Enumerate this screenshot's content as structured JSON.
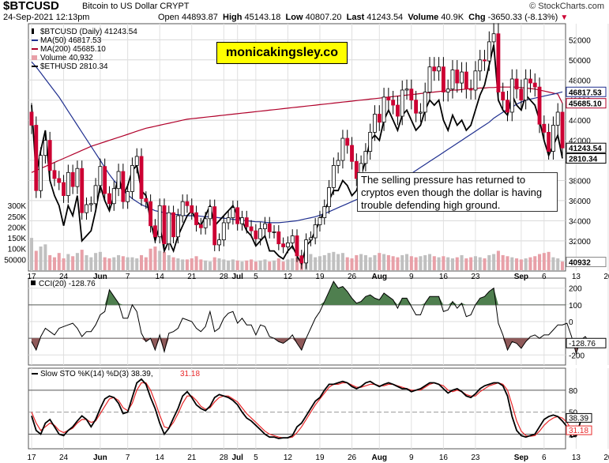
{
  "header": {
    "symbol": "$BTCUSD",
    "name": "Bitcoin to US Dollar  CRYPT",
    "date": "24-Sep-2021 12:13pm",
    "open_label": "Open",
    "open": "44893.87",
    "high_label": "High",
    "high": "45143.18",
    "low_label": "Low",
    "low": "40807.20",
    "last_label": "Last",
    "last": "41243.54",
    "volume_label": "Volume",
    "volume": "40.9K",
    "chg_label": "Chg",
    "chg": "-3650.33 (-8.13%)",
    "credit": "© StockCharts.com"
  },
  "watermark": "monicakingsley.co",
  "annotation": "The selling pressure has returned to cryptos even though the dollar is having trouble defending high ground.",
  "colors": {
    "up": "#ffffff",
    "down": "#cc0033",
    "ma50": "#1f2f8f",
    "ma200": "#b0002a",
    "eth": "#000000",
    "volume": "#e8a0a8",
    "volume_gray": "#c0c0c0",
    "cci_pos": "#4f7f4f",
    "cci_neg": "#8f5a5a",
    "sto_k": "#000000",
    "sto_d": "#e8282a"
  },
  "chart_data": [
    {
      "type": "candlestick",
      "title": "$BTCUSD (Daily) 41243.54",
      "legend": [
        {
          "name": "$BTCUSD (Daily) 41243.54",
          "color": "#000000",
          "kind": "candles"
        },
        {
          "name": "MA(50) 46817.53",
          "color": "#1f2f8f",
          "kind": "line"
        },
        {
          "name": "MA(200) 45685.10",
          "color": "#b0002a",
          "kind": "line"
        },
        {
          "name": "Volume 40,932",
          "color": "#e8a0a8",
          "kind": "bar"
        },
        {
          "name": "$ETHUSD 2810.34",
          "color": "#000000",
          "kind": "line"
        }
      ],
      "ylim": [
        29000,
        53600
      ],
      "y_ticks": [
        30000,
        32000,
        34000,
        36000,
        38000,
        40000,
        42000,
        44000,
        46000,
        48000,
        50000,
        52000
      ],
      "x_ticks": [
        "17",
        "24",
        "Jun",
        "7",
        "14",
        "21",
        "28",
        "Jul",
        "5",
        "12",
        "19",
        "26",
        "Aug",
        "9",
        "16",
        "23",
        "Sep",
        "6",
        "13",
        "20"
      ],
      "x_tick_days": [
        0,
        7,
        15,
        21,
        28,
        35,
        42,
        45,
        49,
        56,
        63,
        70,
        76,
        83,
        90,
        97,
        107,
        112,
        119,
        126
      ],
      "volume_ticks": [
        "300K",
        "250K",
        "200K",
        "150K",
        "100K",
        "50000"
      ],
      "volume_tick_values": [
        300,
        250,
        200,
        150,
        100,
        50
      ],
      "volume_max": 330,
      "tags": [
        {
          "label": "46817.53",
          "value": 46817.53,
          "style": "blue"
        },
        {
          "label": "45685.10",
          "value": 45685.1,
          "style": "red"
        },
        {
          "label": "41243.54",
          "value": 41243.54,
          "style": "dark"
        },
        {
          "label": "2810.34",
          "value": 40200,
          "style": "dark"
        },
        {
          "label": "40932",
          "value": 29900,
          "style": "light"
        }
      ],
      "close": [
        43500,
        37000,
        40500,
        42000,
        39000,
        38200,
        37800,
        36500,
        38800,
        37400,
        39200,
        34800,
        35600,
        35700,
        37500,
        39400,
        36700,
        35700,
        37200,
        38900,
        35900,
        36900,
        39500,
        40400,
        36200,
        35900,
        33500,
        32400,
        35500,
        31700,
        34800,
        32400,
        34500,
        35900,
        35500,
        34800,
        33600,
        33300,
        34200,
        35400,
        31600,
        32100,
        33800,
        34300,
        35300,
        33700,
        34300,
        33400,
        33000,
        32200,
        33200,
        33700,
        32900,
        32900,
        31700,
        31400,
        31800,
        32500,
        30500,
        29800,
        32100,
        32300,
        33600,
        34300,
        35400,
        37300,
        39500,
        40000,
        42200,
        41500,
        39900,
        38200,
        39700,
        40900,
        42800,
        44600,
        43800,
        46300,
        46000,
        45500,
        44400,
        47000,
        47100,
        46000,
        44700,
        44800,
        46800,
        49300,
        48900,
        49300,
        46800,
        47100,
        49000,
        47700,
        48800,
        47100,
        47000,
        48900,
        50000,
        49900,
        51800,
        52600,
        46800,
        46000,
        44800,
        48100,
        47100,
        46000,
        48100,
        47700,
        47300,
        43600,
        42800,
        40900,
        43500,
        44800,
        41243
      ],
      "ma50": [
        49800,
        49300,
        48700,
        48100,
        47500,
        46900,
        46300,
        45600,
        44900,
        44200,
        43500,
        42800,
        42100,
        41400,
        40700,
        40000,
        39300,
        38600,
        38000,
        37500,
        37000,
        36600,
        36200,
        35900,
        35600,
        35400,
        35200,
        35000,
        34900,
        34800,
        34700,
        34650,
        34600,
        34550,
        34500,
        34500,
        34500,
        34450,
        34400,
        34400,
        34350,
        34300,
        34250,
        34200,
        34150,
        34100,
        34050,
        34000,
        33950,
        33900,
        33900,
        33850,
        33800,
        33800,
        33800,
        33850,
        33900,
        33950,
        34000,
        34100,
        34200,
        34300,
        34400,
        34550,
        34700,
        34900,
        35100,
        35300,
        35500,
        35700,
        35900,
        36100,
        36300,
        36500,
        36700,
        36900,
        37100,
        37300,
        37500,
        37700,
        37900,
        38100,
        38400,
        38700,
        39000,
        39300,
        39600,
        39900,
        40200,
        40500,
        40800,
        41100,
        41400,
        41700,
        42000,
        42300,
        42600,
        42900,
        43200,
        43500,
        43800,
        44200,
        44500,
        44800,
        45100,
        45300,
        45600,
        45800,
        46000,
        46100,
        46200,
        46300,
        46400,
        46500,
        46600,
        46700,
        46818
      ],
      "ma200": [
        38800,
        39000,
        39200,
        39400,
        39600,
        39800,
        40000,
        40200,
        40400,
        40600,
        40800,
        41000,
        41200,
        41400,
        41550,
        41700,
        41850,
        42000,
        42150,
        42300,
        42450,
        42600,
        42750,
        42900,
        43050,
        43200,
        43300,
        43400,
        43500,
        43600,
        43700,
        43800,
        43900,
        44000,
        44100,
        44150,
        44200,
        44250,
        44300,
        44350,
        44400,
        44450,
        44500,
        44550,
        44600,
        44650,
        44700,
        44750,
        44800,
        44850,
        44900,
        44950,
        45000,
        45050,
        45100,
        45150,
        45200,
        45250,
        45300,
        45350,
        45400,
        45450,
        45500,
        45550,
        45600,
        45650,
        45700,
        45750,
        45800,
        45850,
        45900,
        45950,
        46000,
        46050,
        46100,
        46150,
        46200,
        46250,
        46300,
        46350,
        46400,
        46450,
        46500,
        46550,
        46600,
        46650,
        46700,
        46750,
        46800,
        46850,
        46900,
        46950,
        47000,
        47000,
        47050,
        47100,
        47150,
        47150,
        47200,
        47200,
        47250,
        47250,
        47300,
        47300,
        47300,
        47300,
        47300,
        47250,
        47200,
        47150,
        47100,
        47000,
        46900,
        46800,
        46700,
        46600,
        45685
      ],
      "ethusd_scaled": [
        45500,
        38500,
        41000,
        43000,
        38000,
        36500,
        35500,
        33500,
        35500,
        34500,
        36500,
        32000,
        32500,
        33000,
        35000,
        37500,
        36000,
        35000,
        36500,
        38500,
        36500,
        37500,
        39000,
        39500,
        37000,
        36500,
        34000,
        32000,
        33500,
        31000,
        32000,
        31000,
        32500,
        33500,
        34500,
        35000,
        34000,
        33500,
        34500,
        35500,
        33500,
        34000,
        34500,
        35000,
        35500,
        34500,
        34000,
        33000,
        32500,
        31500,
        32000,
        32500,
        31000,
        31000,
        30500,
        30200,
        31000,
        31500,
        30500,
        29700,
        31500,
        32000,
        33000,
        34000,
        35000,
        36000,
        37000,
        37000,
        38000,
        37500,
        36500,
        37000,
        38500,
        40000,
        42000,
        42500,
        42000,
        44000,
        45000,
        44000,
        43000,
        44500,
        45000,
        44000,
        43000,
        43500,
        45000,
        46000,
        45500,
        46000,
        44000,
        43000,
        44500,
        43500,
        44000,
        43000,
        43500,
        45000,
        46500,
        47500,
        49500,
        51500,
        46000,
        45000,
        44500,
        46500,
        45500,
        45000,
        46500,
        46000,
        45500,
        44000,
        42000,
        40500,
        41500,
        42500,
        40200
      ],
      "volume": [
        150,
        90,
        110,
        120,
        70,
        60,
        80,
        55,
        75,
        65,
        80,
        95,
        70,
        60,
        80,
        85,
        60,
        55,
        60,
        70,
        65,
        60,
        60,
        55,
        70,
        60,
        100,
        110,
        90,
        85,
        70,
        60,
        55,
        50,
        50,
        55,
        65,
        50,
        45,
        40,
        60,
        55,
        50,
        45,
        50,
        45,
        40,
        45,
        50,
        40,
        45,
        50,
        40,
        45,
        55,
        40,
        50,
        55,
        60,
        70,
        80,
        75,
        60,
        65,
        70,
        80,
        85,
        75,
        80,
        60,
        55,
        70,
        75,
        70,
        60,
        70,
        80,
        75,
        70,
        65,
        60,
        70,
        75,
        65,
        60,
        65,
        70,
        75,
        65,
        60,
        65,
        60,
        55,
        60,
        70,
        55,
        60,
        65,
        60,
        55,
        70,
        75,
        90,
        70,
        65,
        60,
        55,
        50,
        55,
        60,
        65,
        75,
        80,
        85,
        60,
        55,
        40
      ]
    },
    {
      "type": "area",
      "title": "CCI(20) -128.76",
      "ylim": [
        -260,
        260
      ],
      "y_ticks": [
        200,
        100,
        0,
        -100,
        -200
      ],
      "y_tick_labels": [
        "200",
        "100",
        "0",
        "",
        "-200"
      ],
      "tag": {
        "label": "-128.76",
        "value": -128.76
      },
      "values": [
        -120,
        -170,
        -90,
        -40,
        -60,
        -80,
        -40,
        -30,
        -20,
        -10,
        -40,
        -90,
        -60,
        -60,
        -20,
        40,
        60,
        190,
        150,
        110,
        20,
        20,
        100,
        60,
        -70,
        -120,
        -100,
        -170,
        -80,
        -180,
        -70,
        -60,
        -40,
        20,
        10,
        0,
        -40,
        -60,
        -30,
        60,
        -60,
        -40,
        20,
        50,
        60,
        -10,
        20,
        -20,
        -20,
        -80,
        -20,
        -30,
        -90,
        -100,
        -120,
        -130,
        -110,
        -80,
        -130,
        -170,
        -100,
        -40,
        20,
        60,
        120,
        180,
        240,
        200,
        210,
        180,
        140,
        110,
        120,
        150,
        160,
        140,
        130,
        170,
        150,
        130,
        80,
        140,
        140,
        90,
        40,
        40,
        110,
        150,
        150,
        150,
        60,
        70,
        120,
        80,
        110,
        30,
        40,
        100,
        140,
        150,
        180,
        200,
        -10,
        -80,
        -170,
        -120,
        -130,
        -160,
        -120,
        -90,
        -80,
        -100,
        -80,
        -80,
        -50,
        -20,
        -20,
        -10,
        -90,
        -190,
        -110,
        -90,
        -129
      ]
    },
    {
      "type": "line",
      "title": "Slow STO %K(14) %D(3) 38.39, 31.18",
      "title_main": "Slow STO %K(14) %D(3) 38.39,",
      "title_d": "31.18",
      "ylim": [
        0,
        110
      ],
      "y_ticks": [
        80,
        50,
        20
      ],
      "tags": [
        {
          "label": "38.39",
          "value": 38.39
        },
        {
          "label": "31.18",
          "value": 31.18
        }
      ],
      "k_values": [
        45,
        25,
        20,
        35,
        40,
        30,
        20,
        18,
        25,
        30,
        38,
        45,
        40,
        30,
        40,
        55,
        68,
        72,
        70,
        62,
        48,
        50,
        70,
        90,
        95,
        88,
        70,
        55,
        35,
        20,
        28,
        42,
        55,
        72,
        78,
        70,
        60,
        55,
        52,
        58,
        70,
        74,
        72,
        70,
        66,
        60,
        50,
        42,
        38,
        32,
        26,
        20,
        16,
        16,
        14,
        15,
        15,
        18,
        30,
        35,
        45,
        55,
        65,
        70,
        80,
        88,
        88,
        90,
        92,
        90,
        85,
        82,
        85,
        90,
        92,
        88,
        85,
        88,
        90,
        88,
        85,
        82,
        82,
        78,
        80,
        82,
        86,
        90,
        90,
        88,
        82,
        76,
        80,
        82,
        78,
        72,
        70,
        75,
        82,
        86,
        88,
        90,
        90,
        86,
        72,
        44,
        25,
        18,
        16,
        18,
        20,
        30,
        40,
        44,
        46,
        44,
        38,
        30,
        16,
        18,
        38
      ],
      "d_values": [
        50,
        35,
        25,
        30,
        35,
        32,
        25,
        22,
        25,
        28,
        35,
        40,
        40,
        36,
        38,
        48,
        58,
        68,
        70,
        66,
        56,
        52,
        62,
        80,
        90,
        90,
        80,
        64,
        46,
        30,
        28,
        36,
        48,
        62,
        72,
        72,
        66,
        58,
        54,
        56,
        64,
        70,
        72,
        72,
        68,
        64,
        56,
        48,
        42,
        36,
        30,
        24,
        20,
        18,
        16,
        15,
        15,
        16,
        22,
        30,
        40,
        50,
        60,
        68,
        76,
        84,
        88,
        88,
        90,
        90,
        87,
        84,
        84,
        86,
        88,
        88,
        86,
        86,
        88,
        88,
        86,
        84,
        82,
        80,
        80,
        80,
        84,
        88,
        90,
        88,
        86,
        80,
        78,
        80,
        78,
        74,
        72,
        72,
        78,
        82,
        86,
        88,
        90,
        88,
        80,
        60,
        38,
        24,
        18,
        17,
        18,
        24,
        32,
        38,
        42,
        44,
        42,
        36,
        26,
        20,
        31
      ]
    }
  ]
}
